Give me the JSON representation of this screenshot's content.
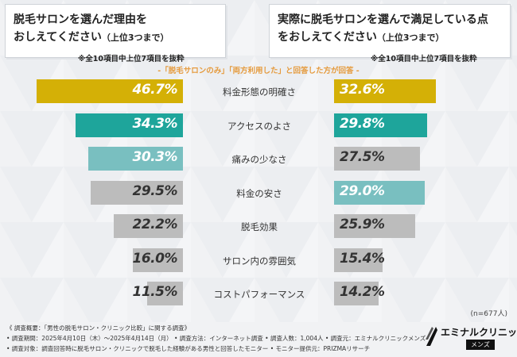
{
  "left_panel": {
    "title_line1": "脱毛サロンを選んだ理由を",
    "title_line2": "おしえてください",
    "title_suffix": "（上位3つまで）",
    "note": "※全10項目中上位7項目を抜粋"
  },
  "right_panel": {
    "title_line1": "実際に脱毛サロンを選んで満足している点",
    "title_line2": "をおしえてください",
    "title_suffix": "（上位3つまで）",
    "note": "※全10項目中上位7項目を抜粋"
  },
  "subtitle": "-「脱毛サロンのみ」「両方利用した」と回答した方が回答 -",
  "sample_size": "(n=677人)",
  "colors": {
    "gold": "#d4b006",
    "teal_dark": "#1ea59b",
    "teal_light": "#79bfc0",
    "grey": "#bcbcbc"
  },
  "chart_data": {
    "type": "bar",
    "title": "脱毛サロンを選んだ理由 / 満足している点",
    "categories": [
      "料金形態の明確さ",
      "アクセスのよさ",
      "痛みの少なさ",
      "料金の安さ",
      "脱毛効果",
      "サロン内の雰囲気",
      "コストパフォーマンス"
    ],
    "series": [
      {
        "name": "脱毛サロンを選んだ理由",
        "values": [
          46.7,
          34.3,
          30.3,
          29.5,
          22.2,
          16.0,
          11.5
        ],
        "labels": [
          "46.7%",
          "34.3%",
          "30.3%",
          "29.5%",
          "22.2%",
          "16.0%",
          "11.5%"
        ],
        "colors": [
          "gold",
          "teal_dark",
          "teal_light",
          "grey",
          "grey",
          "grey",
          "grey"
        ]
      },
      {
        "name": "満足している点",
        "values": [
          32.6,
          29.8,
          27.5,
          29.0,
          25.9,
          15.4,
          14.2
        ],
        "labels": [
          "32.6%",
          "29.8%",
          "27.5%",
          "29.0%",
          "25.9%",
          "15.4%",
          "14.2%"
        ],
        "colors": [
          "gold",
          "teal_dark",
          "grey",
          "teal_light",
          "grey",
          "grey",
          "grey"
        ]
      }
    ],
    "xlim": [
      0,
      46.7
    ],
    "unit": "%"
  },
  "footer": {
    "line1": "《 調査概要：「男性の脱毛サロン・クリニック比較」に関する調査》",
    "line2": "• 調査期間：2025年4月10日（木）～2025年4月14日（月） • 調査方法：インターネット調査 • 調査人数：1,004人 • 調査元：エミナルクリニックメンズ",
    "line3": "• 調査対象：調査回答時に脱毛サロン・クリニックで脱毛した経験がある男性と回答したモニター • モニター提供元：PRIZMAリサーチ"
  },
  "logo": {
    "brand": "エミナルクリニック",
    "sub": "メンズ"
  }
}
